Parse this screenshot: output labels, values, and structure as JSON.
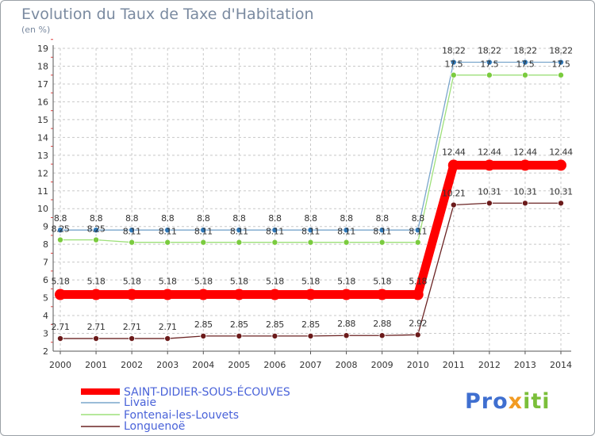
{
  "header": {
    "title": "Evolution du Taux de Taxe d'Habitation",
    "unit": "(en %)"
  },
  "logo": {
    "part1": "Pro",
    "part2": "x",
    "part3": "iti",
    "color_blue": "#3f6fd0",
    "color_orange": "#f29b22",
    "color_green": "#7bbf3a"
  },
  "chart_data": {
    "type": "line",
    "title": "Evolution du Taux de Taxe d'Habitation",
    "ylabel": "(en %)",
    "xlabel": "",
    "ylim": [
      2,
      19
    ],
    "yticks": [
      2,
      3,
      4,
      5,
      6,
      7,
      8,
      9,
      10,
      11,
      12,
      13,
      14,
      15,
      16,
      17,
      18,
      19
    ],
    "x": [
      "2000",
      "2001",
      "2002",
      "2003",
      "2004",
      "2005",
      "2006",
      "2007",
      "2008",
      "2009",
      "2010",
      "2011",
      "2012",
      "2013",
      "2014"
    ],
    "grid": true,
    "legend_position": "bottom-left",
    "series": [
      {
        "name": "SAINT-DIDIER-SOUS-ÉCOUVES",
        "color": "#ff0000",
        "values": [
          5.18,
          5.18,
          5.18,
          5.18,
          5.18,
          5.18,
          5.18,
          5.18,
          5.18,
          5.18,
          5.18,
          12.44,
          12.44,
          12.44,
          12.44
        ],
        "labels": [
          "5.18",
          "5.18",
          "5.18",
          "5.18",
          "5.18",
          "5.18",
          "5.18",
          "5.18",
          "5.18",
          "5.18",
          "5.18",
          "12.44",
          "12.44",
          "12.44",
          "12.44"
        ]
      },
      {
        "name": "Livaie",
        "color": "#7aa6cc",
        "marker": "#2f78b8",
        "values": [
          8.8,
          8.8,
          8.8,
          8.8,
          8.8,
          8.8,
          8.8,
          8.8,
          8.8,
          8.8,
          8.8,
          18.22,
          18.22,
          18.22,
          18.22
        ],
        "labels": [
          "8.8",
          "8.8",
          "8.8",
          "8.8",
          "8.8",
          "8.8",
          "8.8",
          "8.8",
          "8.8",
          "8.8",
          "8.8",
          "18.22",
          "18.22",
          "18.22",
          "18.22"
        ]
      },
      {
        "name": "Fontenai-les-Louvets",
        "color": "#9ee07a",
        "marker": "#7acb3e",
        "values": [
          8.25,
          8.25,
          8.11,
          8.11,
          8.11,
          8.11,
          8.11,
          8.11,
          8.11,
          8.11,
          8.11,
          17.5,
          17.5,
          17.5,
          17.5
        ],
        "labels": [
          "8.25",
          "8.25",
          "8.11",
          "8.11",
          "8.11",
          "8.11",
          "8.11",
          "8.11",
          "8.11",
          "8.11",
          "8.11",
          "17.5",
          "17.5",
          "17.5",
          "17.5"
        ]
      },
      {
        "name": "Longuenoë",
        "color": "#6b2424",
        "marker": "#6b1a1a",
        "values": [
          2.71,
          2.71,
          2.71,
          2.71,
          2.85,
          2.85,
          2.85,
          2.85,
          2.88,
          2.88,
          2.92,
          10.21,
          10.31,
          10.31,
          10.31
        ],
        "labels": [
          "2.71",
          "2.71",
          "2.71",
          "2.71",
          "2.85",
          "2.85",
          "2.85",
          "2.85",
          "2.88",
          "2.88",
          "2.92",
          "10.21",
          "10.31",
          "10.31",
          "10.31"
        ]
      }
    ]
  }
}
